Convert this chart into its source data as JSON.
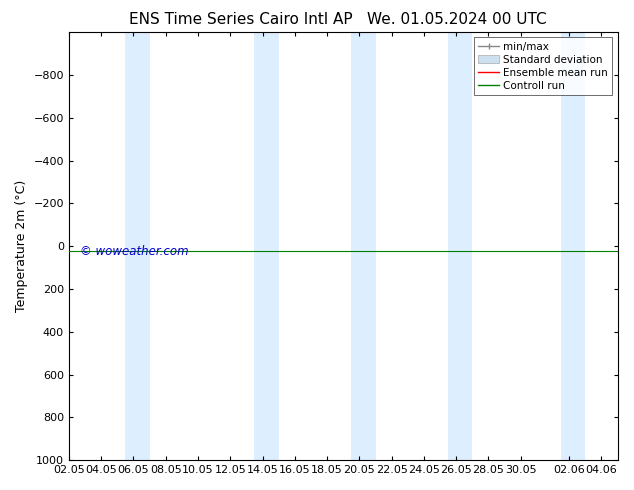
{
  "title_left": "ENS Time Series Cairo Intl AP",
  "title_right": "We. 01.05.2024 00 UTC",
  "ylabel": "Temperature 2m (°C)",
  "watermark": "© woweather.com",
  "watermark_color": "#0000cc",
  "xlim_left": 0,
  "xlim_right": 34,
  "ylim_bottom": 1000,
  "ylim_top": -1000,
  "yticks": [
    -800,
    -600,
    -400,
    -200,
    0,
    200,
    400,
    600,
    800,
    1000
  ],
  "xtick_labels": [
    "02.05",
    "04.05",
    "06.05",
    "08.05",
    "10.05",
    "12.05",
    "14.05",
    "16.05",
    "18.05",
    "20.05",
    "22.05",
    "24.05",
    "26.05",
    "28.05",
    "30.05",
    "02.06",
    "04.06"
  ],
  "xtick_positions": [
    0,
    2,
    4,
    6,
    8,
    10,
    12,
    14,
    16,
    18,
    20,
    22,
    24,
    26,
    28,
    31,
    33
  ],
  "shaded_bands": [
    [
      3.5,
      5.0
    ],
    [
      11.5,
      13.0
    ],
    [
      17.5,
      19.0
    ],
    [
      23.5,
      25.0
    ],
    [
      30.5,
      32.0
    ]
  ],
  "band_color": "#ddeeff",
  "green_line_y": 25,
  "bg_color": "#ffffff",
  "legend_items": [
    {
      "label": "min/max",
      "color": "#aaaaaa",
      "type": "errbar"
    },
    {
      "label": "Standard deviation",
      "color": "#cce0f0",
      "type": "box"
    },
    {
      "label": "Ensemble mean run",
      "color": "#ff0000",
      "type": "line"
    },
    {
      "label": "Controll run",
      "color": "#008000",
      "type": "line"
    }
  ],
  "title_fontsize": 11,
  "axis_fontsize": 9,
  "tick_fontsize": 8,
  "legend_fontsize": 7.5
}
